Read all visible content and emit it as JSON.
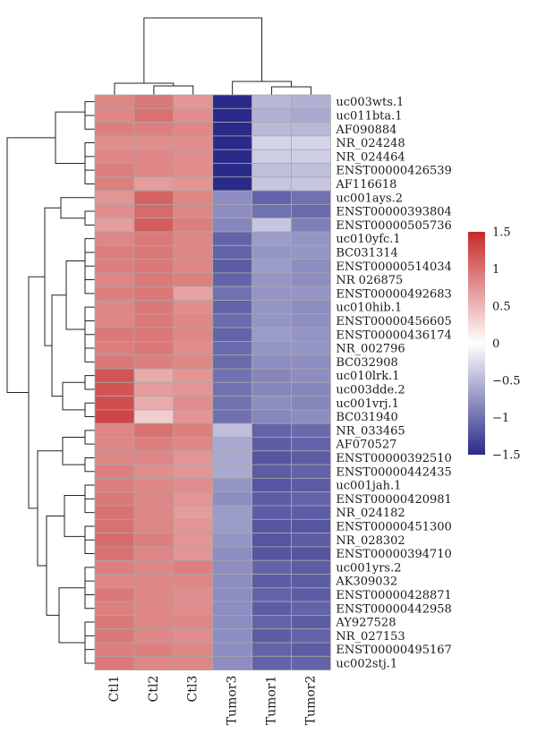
{
  "chart_data": {
    "type": "heatmap",
    "title": "",
    "columns": [
      "Ctl1",
      "Ctl2",
      "Ctl3",
      "Tumor3",
      "Tumor1",
      "Tumor2"
    ],
    "rows": [
      "uc003wts.1",
      "uc011bta.1",
      "AF090884",
      "NR_024248",
      "NR_024464",
      "ENST00000426539",
      "AF116618",
      "uc001ays.2",
      "ENST00000393804",
      "ENST00000505736",
      "uc010yfc.1",
      "BC031314",
      "ENST00000514034",
      "NR 026875",
      "ENST00000492683",
      "uc010hib.1",
      "ENST00000456605",
      "ENST00000436174",
      "NR_002796",
      "BC032908",
      "uc010lrk.1",
      "uc003dde.2",
      "uc001vrj.1",
      "BC031940",
      "NR_033465",
      "AF070527",
      "ENST00000392510",
      "ENST00000442435",
      "uc001jah.1",
      "ENST00000420981",
      "NR_024182",
      "ENST00000451300",
      "NR_028302",
      "ENST00000394710",
      "uc001yrs.2",
      "AK309032",
      "ENST00000428871",
      "ENST00000442958",
      "AY927528",
      "NR_027153",
      "ENST00000495167",
      "uc002stj.1"
    ],
    "values": [
      [
        0.85,
        0.95,
        0.75,
        -1.55,
        -0.5,
        -0.55
      ],
      [
        0.85,
        1.0,
        0.8,
        -1.5,
        -0.55,
        -0.6
      ],
      [
        0.9,
        0.9,
        0.85,
        -1.6,
        -0.5,
        -0.5
      ],
      [
        0.8,
        0.8,
        0.8,
        -1.55,
        -0.3,
        -0.3
      ],
      [
        0.85,
        0.85,
        0.8,
        -1.55,
        -0.35,
        -0.35
      ],
      [
        0.9,
        0.85,
        0.8,
        -1.5,
        -0.45,
        -0.45
      ],
      [
        0.9,
        0.7,
        0.75,
        -1.55,
        -0.4,
        -0.4
      ],
      [
        0.75,
        1.1,
        0.85,
        -0.8,
        -1.1,
        -1.0
      ],
      [
        0.8,
        1.05,
        0.85,
        -0.8,
        -1.0,
        -1.05
      ],
      [
        0.7,
        1.15,
        0.9,
        -0.85,
        -0.4,
        -0.9
      ],
      [
        0.85,
        0.95,
        0.85,
        -1.1,
        -0.7,
        -0.75
      ],
      [
        0.9,
        0.95,
        0.85,
        -1.1,
        -0.75,
        -0.75
      ],
      [
        0.9,
        0.95,
        0.85,
        -1.15,
        -0.7,
        -0.8
      ],
      [
        0.85,
        0.95,
        0.9,
        -1.1,
        -0.75,
        -0.8
      ],
      [
        0.9,
        0.95,
        0.65,
        -1.0,
        -0.75,
        -0.75
      ],
      [
        0.85,
        0.95,
        0.8,
        -1.1,
        -0.75,
        -0.8
      ],
      [
        0.85,
        0.95,
        0.85,
        -1.05,
        -0.75,
        -0.8
      ],
      [
        0.95,
        0.95,
        0.85,
        -1.1,
        -0.7,
        -0.75
      ],
      [
        0.9,
        0.95,
        0.8,
        -1.05,
        -0.75,
        -0.75
      ],
      [
        0.95,
        0.9,
        0.85,
        -1.05,
        -0.8,
        -0.8
      ],
      [
        1.2,
        0.6,
        0.75,
        -1.0,
        -0.85,
        -0.8
      ],
      [
        1.2,
        0.7,
        0.75,
        -1.0,
        -0.85,
        -0.85
      ],
      [
        1.25,
        0.6,
        0.8,
        -1.0,
        -0.8,
        -0.85
      ],
      [
        1.3,
        0.35,
        0.75,
        -1.0,
        -0.85,
        -0.8
      ],
      [
        0.85,
        1.0,
        0.9,
        -0.45,
        -1.1,
        -1.05
      ],
      [
        0.85,
        0.9,
        0.85,
        -0.6,
        -1.15,
        -1.1
      ],
      [
        0.85,
        0.85,
        0.75,
        -0.6,
        -1.2,
        -1.15
      ],
      [
        0.9,
        0.8,
        0.75,
        -0.6,
        -1.15,
        -1.1
      ],
      [
        0.9,
        0.85,
        0.8,
        -0.75,
        -1.2,
        -1.15
      ],
      [
        0.95,
        0.85,
        0.75,
        -0.8,
        -1.15,
        -1.1
      ],
      [
        1.0,
        0.85,
        0.7,
        -0.7,
        -1.15,
        -1.15
      ],
      [
        1.0,
        0.85,
        0.75,
        -0.7,
        -1.2,
        -1.2
      ],
      [
        1.05,
        0.9,
        0.75,
        -0.75,
        -1.2,
        -1.15
      ],
      [
        1.0,
        0.85,
        0.75,
        -0.8,
        -1.2,
        -1.2
      ],
      [
        0.9,
        0.85,
        0.9,
        -0.8,
        -1.1,
        -1.15
      ],
      [
        0.85,
        0.85,
        0.85,
        -0.8,
        -1.15,
        -1.15
      ],
      [
        0.95,
        0.85,
        0.8,
        -0.8,
        -1.1,
        -1.15
      ],
      [
        0.9,
        0.85,
        0.8,
        -0.8,
        -1.15,
        -1.1
      ],
      [
        0.95,
        0.85,
        0.85,
        -0.8,
        -1.1,
        -1.15
      ],
      [
        0.95,
        0.85,
        0.8,
        -0.8,
        -1.15,
        -1.1
      ],
      [
        0.9,
        0.9,
        0.85,
        -0.8,
        -1.1,
        -1.15
      ],
      [
        0.95,
        0.85,
        0.85,
        -0.8,
        -1.1,
        -1.1
      ]
    ],
    "color_scale": {
      "min": -1.5,
      "mid": 0,
      "max": 1.5,
      "low_color": "#2a2a8a",
      "mid_color": "#ffffff",
      "high_color": "#c62a2a"
    },
    "legend": {
      "placement": "right",
      "ticks": [
        1.5,
        1,
        0.5,
        0,
        -0.5,
        -1,
        -1.5
      ],
      "tick_labels": [
        "1.5",
        "1",
        "0.5",
        "0",
        "−0.5",
        "−1",
        "−1.5"
      ]
    },
    "dendrogram_rows": true,
    "dendrogram_columns": true,
    "cell_border_color": "#a8a8a8"
  }
}
